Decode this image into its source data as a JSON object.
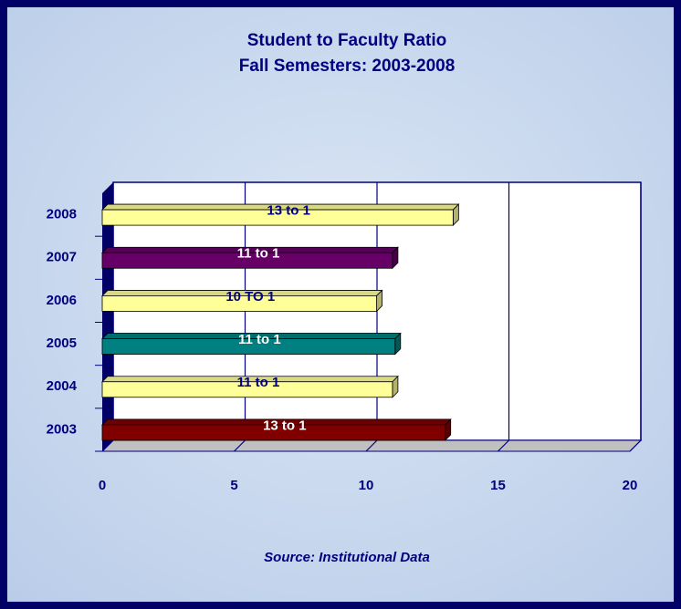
{
  "chart_data": {
    "type": "bar",
    "orientation": "horizontal",
    "title": "Student to Faculty Ratio",
    "subtitle": "Fall Semesters: 2003-2008",
    "categories": [
      "2003",
      "2004",
      "2005",
      "2006",
      "2007",
      "2008"
    ],
    "values": [
      13.0,
      11.0,
      11.1,
      10.4,
      11.0,
      13.3
    ],
    "value_labels": [
      "13 to 1",
      "11 to 1",
      "11 to 1",
      "10 TO 1",
      "11 to 1",
      "13 to 1"
    ],
    "colors": [
      "#800000",
      "#ffff99",
      "#008080",
      "#ffff99",
      "#660066",
      "#ffff99"
    ],
    "xlim": [
      0,
      20
    ],
    "xticks": [
      0,
      5,
      10,
      15,
      20
    ],
    "grid": true,
    "annotation": "Source: Institutional Data"
  }
}
